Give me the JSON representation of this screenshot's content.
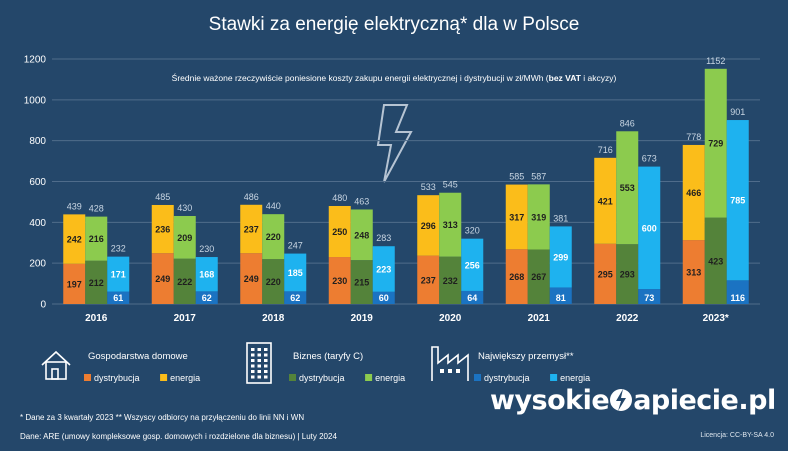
{
  "chart_data": {
    "type": "bar",
    "title": "Stawki za energię elektryczną* dla w Polsce",
    "subtitle_main": "Średnie ważone rzeczywiście poniesione koszty zakupu energii elektrycznej i dystrybucji w zł/MWh (",
    "subtitle_bold": "bez VAT",
    "subtitle_end": " i akcyzy)",
    "categories": [
      "2016",
      "2017",
      "2018",
      "2019",
      "2020",
      "2021",
      "2022",
      "2023*"
    ],
    "ylim": [
      0,
      1200
    ],
    "yticks": [
      0,
      200,
      400,
      600,
      800,
      1000,
      1200
    ],
    "grid": true,
    "stacked": true,
    "groups": [
      {
        "name": "Gospodarstwa domowe",
        "icon": "house-icon",
        "totals": [
          439,
          485,
          486,
          480,
          533,
          585,
          716,
          778
        ],
        "series": [
          {
            "name": "dystrybucja",
            "color": "#ed7d31",
            "values": [
              197,
              249,
              249,
              230,
              237,
              268,
              295,
              313
            ]
          },
          {
            "name": "energia",
            "color": "#fbbd1a",
            "values": [
              242,
              236,
              237,
              250,
              296,
              317,
              421,
              466
            ]
          }
        ]
      },
      {
        "name": "Biznes (taryfy C)",
        "icon": "office-building-icon",
        "totals": [
          428,
          430,
          440,
          463,
          545,
          587,
          846,
          1152
        ],
        "series": [
          {
            "name": "dystrybucja",
            "color": "#54833a",
            "values": [
              212,
              222,
              220,
              215,
              232,
              267,
              293,
              423
            ]
          },
          {
            "name": "energia",
            "color": "#8ccb4e",
            "values": [
              216,
              209,
              220,
              248,
              313,
              319,
              553,
              729
            ]
          }
        ]
      },
      {
        "name": "Największy przemysł**",
        "icon": "factory-icon",
        "totals": [
          232,
          230,
          247,
          283,
          320,
          381,
          673,
          901
        ],
        "series": [
          {
            "name": "dystrybucja",
            "color": "#1b73c2",
            "values": [
              61,
              62,
              62,
              60,
              64,
              81,
              73,
              116
            ]
          },
          {
            "name": "energia",
            "color": "#1eb2ef",
            "values": [
              171,
              168,
              185,
              223,
              256,
              299,
              600,
              785
            ]
          }
        ]
      }
    ]
  },
  "footnotes": {
    "line1": "* Dane za 3 kwartały 2023   ** Wszyscy odbiorcy na przyłączeniu do linii NN i WN",
    "line2": "Dane: ARE (umowy kompleksowe gosp. domowych i rozdzielone dla biznesu)  |  Luty 2024"
  },
  "brand": {
    "part1": "wysokie",
    "part2": "apiecie.pl",
    "icon": "lightning-bolt-icon"
  },
  "license": "Licencja: CC-BY-SA 4.0",
  "colors": {
    "background": "#24476a",
    "grid": "#4f6c8b",
    "total_label": "#c9d6e3"
  }
}
